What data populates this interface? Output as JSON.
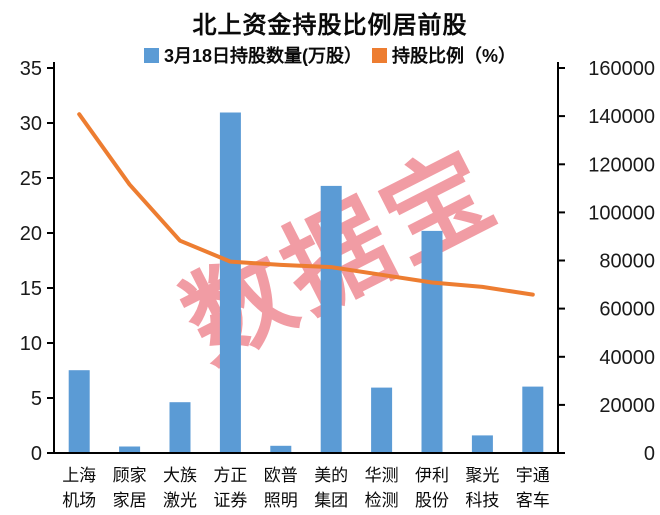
{
  "page": {
    "title": "北上资金持股比例居前股"
  },
  "legend": [
    {
      "label": "3月18日持股数量(万股）",
      "color": "#5B9BD5"
    },
    {
      "label": "持股比例（%）",
      "color": "#ED7D31"
    }
  ],
  "watermark": {
    "text": "数据宝",
    "color": "#E8606C",
    "opacity": 0.62
  },
  "colors": {
    "bar": "#5B9BD5",
    "line": "#ED7D31",
    "axis": "#000000",
    "tick_text": "#1a1a1a"
  },
  "chart_data": {
    "type": "bar",
    "subtype": "combo-bar-line",
    "title": "北上资金持股比例居前股",
    "categories": [
      "上海机场",
      "顾家家居",
      "大族激光",
      "方正证券",
      "欧普照明",
      "美的集团",
      "华测检测",
      "伊利股份",
      "聚光科技",
      "宇通客车"
    ],
    "series": [
      {
        "name": "3月18日持股数量(万股）",
        "type": "bar",
        "axis": "right",
        "color": "#5B9BD5",
        "values": [
          34400,
          2700,
          21100,
          141500,
          3000,
          111000,
          27200,
          92300,
          7300,
          27600
        ]
      },
      {
        "name": "持股比例（%）",
        "type": "line",
        "axis": "left",
        "color": "#ED7D31",
        "values": [
          30.8,
          24.4,
          19.3,
          17.4,
          17.1,
          16.9,
          16.2,
          15.5,
          15.1,
          14.4
        ]
      }
    ],
    "left_axis": {
      "label": "持股比例（%）",
      "min": 0,
      "max": 35,
      "step": 5,
      "ticks": [
        "0",
        "5",
        "10",
        "15",
        "20",
        "25",
        "30",
        "35"
      ]
    },
    "right_axis": {
      "label": "3月18日持股数量(万股）",
      "min": 0,
      "max": 160000,
      "step": 20000,
      "ticks": [
        "0",
        "20000",
        "40000",
        "60000",
        "80000",
        "100000",
        "120000",
        "140000",
        "160000"
      ]
    },
    "grid": false,
    "legend_position": "top"
  }
}
